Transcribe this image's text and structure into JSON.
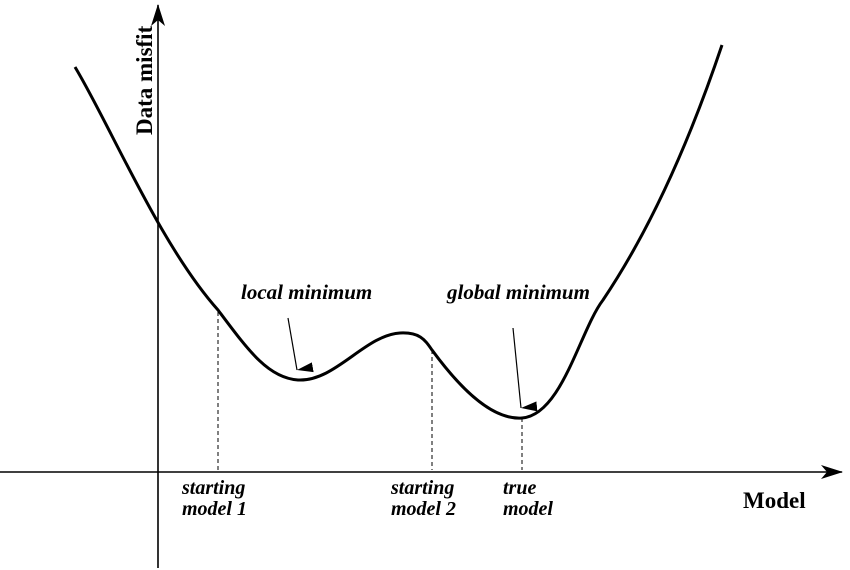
{
  "axes": {
    "y_label": "Data misfit",
    "x_label": "Model"
  },
  "annotations": {
    "local_minimum": "local minimum",
    "global_minimum": "global minimum"
  },
  "markers": [
    {
      "line1": "starting",
      "line2": "model 1"
    },
    {
      "line1": "starting",
      "line2": "model 2"
    },
    {
      "line1": "true",
      "line2": "model"
    }
  ]
}
